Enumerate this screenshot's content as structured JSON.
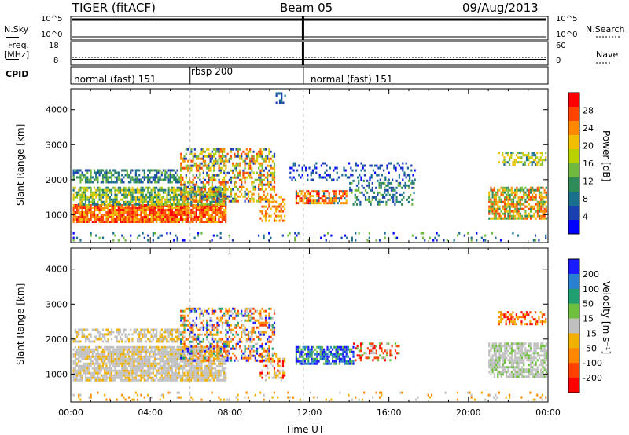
{
  "header": {
    "radar_title": "TIGER (fitACF)",
    "beam_label": "Beam 05",
    "date_label": "09/Aug/2013"
  },
  "top_panels": {
    "nsky_label": "N.Sky",
    "nsearch_label": "N.Search",
    "freq_label": "Freq.",
    "freq_unit": "[MHz]",
    "nave_label": "Nave",
    "cpid_label": "CPID",
    "noise_ticks": [
      "10^5",
      "10^0"
    ],
    "freq_ticks": [
      "18",
      "8"
    ],
    "nave_ticks": [
      "60",
      "0"
    ]
  },
  "cpid_segments": [
    {
      "label": "normal (fast) 151",
      "start_hour": 0,
      "end_hour": 6
    },
    {
      "label": "rbsp 200",
      "start_hour": 6,
      "end_hour": 11.7
    },
    {
      "label": "normal (fast) 151",
      "start_hour": 11.7,
      "end_hour": 24
    }
  ],
  "chart_data": [
    {
      "type": "heatmap",
      "panel": "power",
      "xlabel": "",
      "ylabel": "Slant Range [km]",
      "xlim": [
        0,
        24
      ],
      "ylim": [
        200,
        4600
      ],
      "yticks": [
        1000,
        2000,
        3000,
        4000
      ],
      "xticks": [
        "00:00",
        "04:00",
        "08:00",
        "12:00",
        "16:00",
        "20:00",
        "00:00"
      ],
      "colorbar_label": "Power [dB]",
      "colorbar_ticks": [
        "28",
        "24",
        "20",
        "16",
        "12",
        "8",
        "4"
      ],
      "colorbar_colors": [
        "#ff0000",
        "#ff4400",
        "#ff8800",
        "#f0c000",
        "#b8d000",
        "#70b840",
        "#2e8b57",
        "#1a6f8a",
        "#1a3fb0",
        "#0000ff"
      ]
    },
    {
      "type": "heatmap",
      "panel": "velocity",
      "xlabel": "Time UT",
      "ylabel": "Slant Range [km]",
      "xlim": [
        0,
        24
      ],
      "ylim": [
        200,
        4600
      ],
      "yticks": [
        1000,
        2000,
        3000,
        4000
      ],
      "xticks": [
        "00:00",
        "04:00",
        "08:00",
        "12:00",
        "16:00",
        "20:00",
        "00:00"
      ],
      "colorbar_label": "Velocity [m s⁻¹]",
      "colorbar_ticks": [
        "200",
        "100",
        "50",
        "15",
        "-15",
        "-50",
        "-100",
        "-200"
      ],
      "colorbar_colors": [
        "#1a1aff",
        "#2a7fd0",
        "#20a070",
        "#70c040",
        "#c0c0c0",
        "#f0b000",
        "#ff8800",
        "#ff4000",
        "#ff0000"
      ]
    }
  ]
}
